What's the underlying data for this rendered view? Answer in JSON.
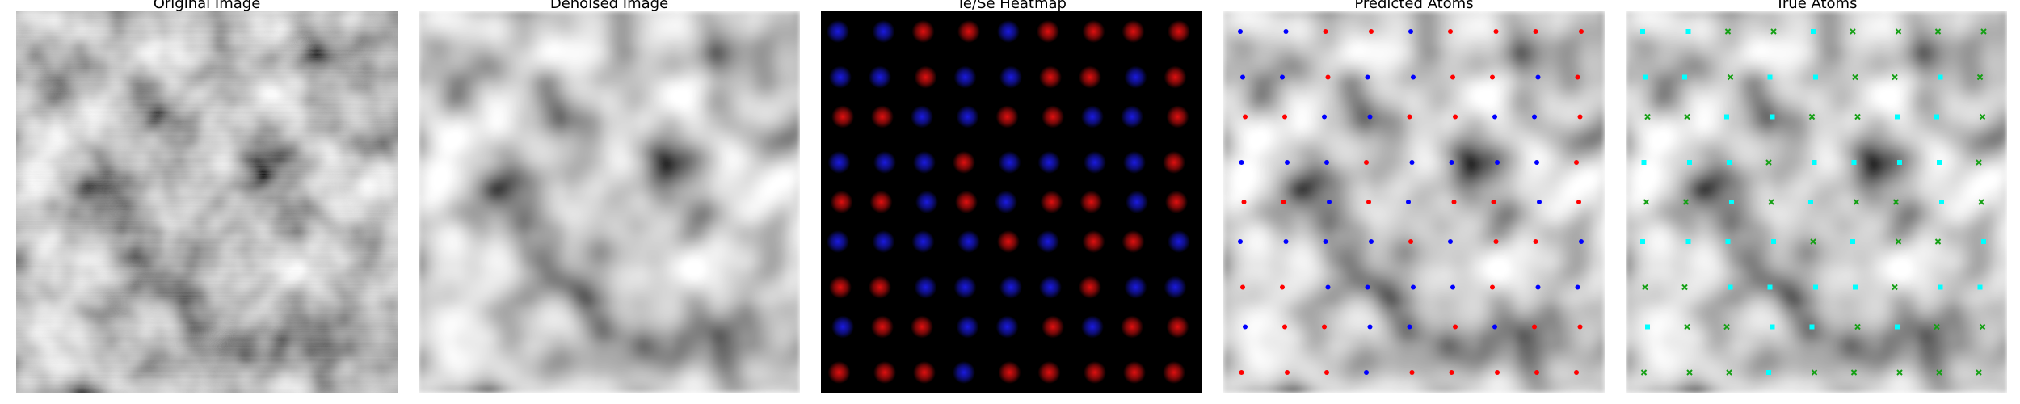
{
  "figure": {
    "panels": [
      {
        "id": "original",
        "title": "Original Image"
      },
      {
        "id": "denoised",
        "title": "Denoised Image"
      },
      {
        "id": "heatmap",
        "title": "Te/Se Heatmap"
      },
      {
        "id": "predicted",
        "title": "Predicted Atoms"
      },
      {
        "id": "true",
        "title": "True Atoms"
      }
    ]
  },
  "colors": {
    "te": "#e01010",
    "se": "#1a1ae0",
    "pred_te": "#ff0000",
    "pred_se": "#0000ff",
    "true_a": "#00ffff",
    "true_b": "#14a014",
    "heatmap_bg": "#000000"
  },
  "lattice": {
    "rows": 9,
    "cols": 9,
    "te_pattern": [
      "001101111",
      "001001101",
      "110011001",
      "000100001",
      "110101101",
      "000010110",
      "110000100",
      "011001011",
      "111011111"
    ]
  },
  "markers": {
    "predicted": "dot",
    "true": "cross-square"
  }
}
